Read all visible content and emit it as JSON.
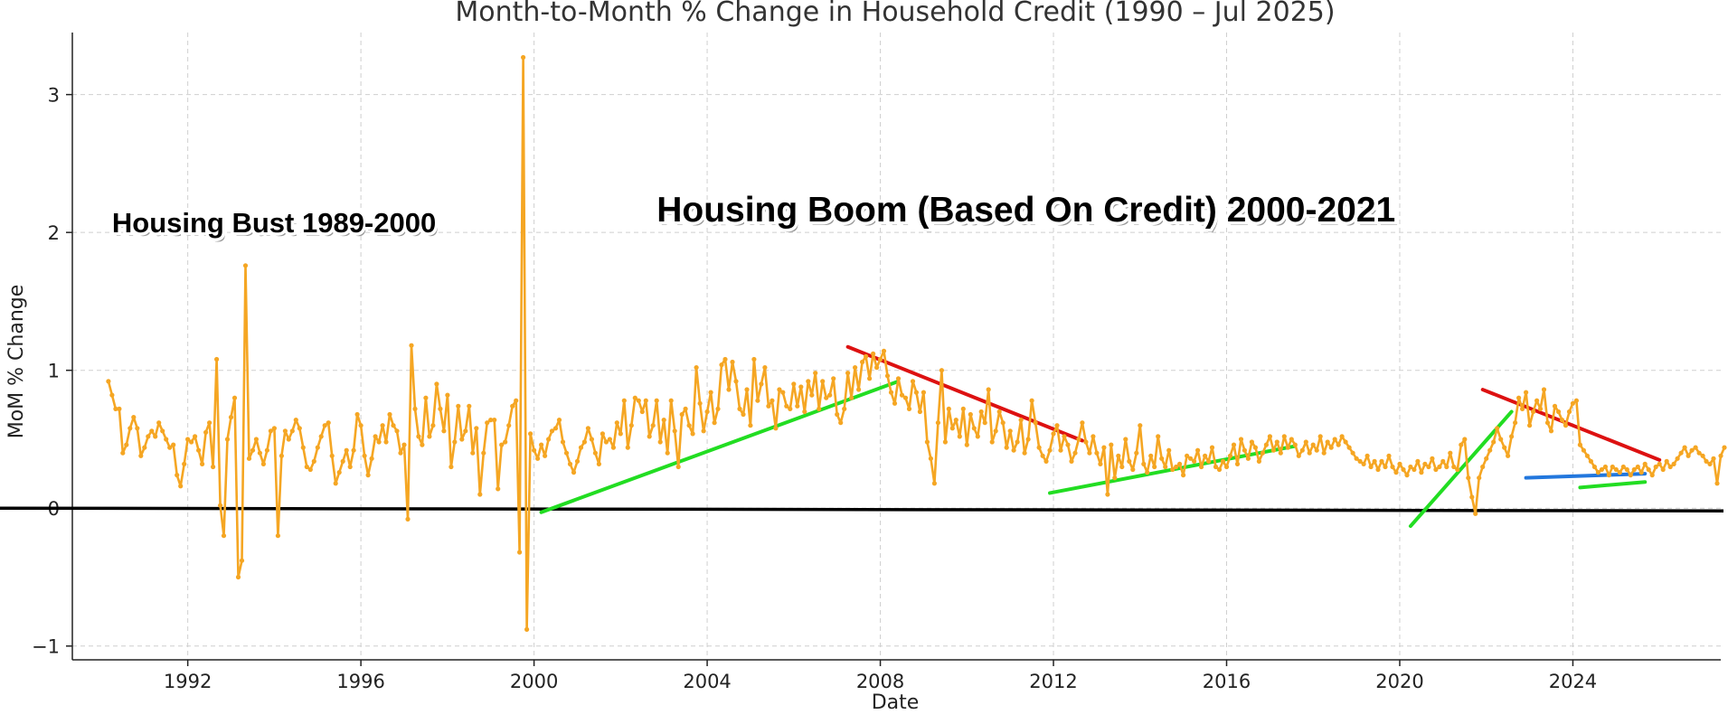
{
  "chart_data": {
    "type": "line",
    "title": "Month-to-Month % Change in Household Credit (1990 – Jul 2025)",
    "xlabel": "Date",
    "ylabel": "MoM % Change",
    "xlim": [
      "1989-05-01",
      "2027-06-01"
    ],
    "ylim": [
      -1.1,
      3.45
    ],
    "x_ticks": [
      "1992",
      "1996",
      "2000",
      "2004",
      "2008",
      "2012",
      "2016",
      "2020",
      "2024"
    ],
    "y_ticks": [
      -1,
      0,
      1,
      2,
      3
    ],
    "y_tick_labels": [
      "−1",
      "0",
      "1",
      "2",
      "3"
    ],
    "grid": true,
    "line_color": "#f5a623",
    "series": [
      {
        "values_monthly_from": "1990-03",
        "values": [
          0.92,
          0.82,
          0.72,
          0.72,
          0.4,
          0.46,
          0.58,
          0.66,
          0.58,
          0.38,
          0.44,
          0.52,
          0.56,
          0.52,
          0.62,
          0.56,
          0.5,
          0.44,
          0.46,
          0.24,
          0.16,
          0.32,
          0.5,
          0.48,
          0.52,
          0.42,
          0.32,
          0.55,
          0.62,
          0.3,
          1.08,
          0.02,
          -0.2,
          0.5,
          0.66,
          0.8,
          -0.5,
          -0.38,
          1.76,
          0.36,
          0.42,
          0.5,
          0.4,
          0.32,
          0.42,
          0.56,
          0.58,
          -0.2,
          0.38,
          0.56,
          0.5,
          0.56,
          0.64,
          0.58,
          0.44,
          0.3,
          0.28,
          0.34,
          0.44,
          0.52,
          0.6,
          0.62,
          0.38,
          0.18,
          0.26,
          0.34,
          0.42,
          0.3,
          0.42,
          0.68,
          0.6,
          0.38,
          0.24,
          0.36,
          0.52,
          0.48,
          0.6,
          0.48,
          0.68,
          0.6,
          0.56,
          0.4,
          0.46,
          -0.08,
          1.18,
          0.72,
          0.52,
          0.46,
          0.8,
          0.52,
          0.6,
          0.9,
          0.72,
          0.56,
          0.82,
          0.3,
          0.48,
          0.74,
          0.5,
          0.56,
          0.74,
          0.4,
          0.58,
          0.1,
          0.4,
          0.62,
          0.64,
          0.64,
          0.14,
          0.46,
          0.48,
          0.6,
          0.74,
          0.78,
          -0.32,
          3.27,
          -0.88,
          0.54,
          0.42,
          0.36,
          0.46,
          0.38,
          0.5,
          0.56,
          0.58,
          0.64,
          0.48,
          0.4,
          0.32,
          0.26,
          0.34,
          0.44,
          0.48,
          0.58,
          0.5,
          0.4,
          0.32,
          0.54,
          0.48,
          0.5,
          0.44,
          0.62,
          0.54,
          0.78,
          0.44,
          0.6,
          0.8,
          0.78,
          0.7,
          0.78,
          0.52,
          0.6,
          0.78,
          0.48,
          0.64,
          0.4,
          0.78,
          0.56,
          0.3,
          0.68,
          0.72,
          0.6,
          0.54,
          1.02,
          0.76,
          0.56,
          0.7,
          0.84,
          0.62,
          0.72,
          1.04,
          1.08,
          0.86,
          1.06,
          0.92,
          0.72,
          0.68,
          0.86,
          0.6,
          1.08,
          0.78,
          0.9,
          1.02,
          0.74,
          0.78,
          0.58,
          0.86,
          0.84,
          0.74,
          0.72,
          0.9,
          0.74,
          0.88,
          0.7,
          0.92,
          0.82,
          0.98,
          0.72,
          0.92,
          0.8,
          0.82,
          0.94,
          0.68,
          0.62,
          0.72,
          0.98,
          0.8,
          1.02,
          0.86,
          1.06,
          1.1,
          0.94,
          1.12,
          1.02,
          1.08,
          1.14,
          0.96,
          0.84,
          0.76,
          0.94,
          0.82,
          0.8,
          0.72,
          0.92,
          0.84,
          0.7,
          0.84,
          0.48,
          0.36,
          0.18,
          0.62,
          1.0,
          0.48,
          0.72,
          0.58,
          0.64,
          0.52,
          0.72,
          0.46,
          0.68,
          0.58,
          0.52,
          0.7,
          0.62,
          0.86,
          0.48,
          0.56,
          0.7,
          0.62,
          0.44,
          0.56,
          0.42,
          0.48,
          0.64,
          0.4,
          0.5,
          0.78,
          0.62,
          0.44,
          0.38,
          0.34,
          0.42,
          0.54,
          0.6,
          0.42,
          0.52,
          0.46,
          0.34,
          0.4,
          0.5,
          0.62,
          0.48,
          0.4,
          0.52,
          0.4,
          0.32,
          0.44,
          0.1,
          0.46,
          0.22,
          0.38,
          0.3,
          0.5,
          0.34,
          0.28,
          0.4,
          0.6,
          0.32,
          0.26,
          0.38,
          0.3,
          0.52,
          0.36,
          0.3,
          0.42,
          0.28,
          0.3,
          0.32,
          0.24,
          0.38,
          0.36,
          0.34,
          0.42,
          0.3,
          0.38,
          0.34,
          0.44,
          0.3,
          0.28,
          0.34,
          0.3,
          0.38,
          0.46,
          0.32,
          0.5,
          0.42,
          0.36,
          0.48,
          0.44,
          0.34,
          0.4,
          0.46,
          0.52,
          0.42,
          0.48,
          0.4,
          0.52,
          0.44,
          0.5,
          0.46,
          0.38,
          0.42,
          0.48,
          0.4,
          0.46,
          0.42,
          0.52,
          0.4,
          0.48,
          0.44,
          0.5,
          0.46,
          0.52,
          0.48,
          0.44,
          0.4,
          0.36,
          0.34,
          0.32,
          0.38,
          0.3,
          0.34,
          0.28,
          0.34,
          0.3,
          0.38,
          0.3,
          0.26,
          0.32,
          0.28,
          0.24,
          0.3,
          0.28,
          0.34,
          0.26,
          0.32,
          0.3,
          0.36,
          0.28,
          0.3,
          0.34,
          0.3,
          0.4,
          0.3,
          0.28,
          0.46,
          0.5,
          0.22,
          0.08,
          -0.04,
          0.22,
          0.3,
          0.36,
          0.42,
          0.48,
          0.58,
          0.5,
          0.44,
          0.38,
          0.52,
          0.62,
          0.8,
          0.72,
          0.84,
          0.6,
          0.7,
          0.78,
          0.72,
          0.86,
          0.62,
          0.56,
          0.74,
          0.7,
          0.64,
          0.6,
          0.7,
          0.76,
          0.78,
          0.46,
          0.42,
          0.38,
          0.34,
          0.3,
          0.26,
          0.28,
          0.3,
          0.24,
          0.3,
          0.28,
          0.26,
          0.3,
          0.28,
          0.24,
          0.28,
          0.3,
          0.26,
          0.32,
          0.28,
          0.24,
          0.3,
          0.32,
          0.28,
          0.34,
          0.3,
          0.32,
          0.36,
          0.4,
          0.44,
          0.38,
          0.42,
          0.44,
          0.4,
          0.38,
          0.34,
          0.32,
          0.36,
          0.18,
          0.38,
          0.44
        ]
      }
    ],
    "zero_line": {
      "y": 0,
      "color": "#000000"
    },
    "trend_lines": [
      {
        "color": "#22dd22",
        "from": [
          "2000-03",
          -0.03
        ],
        "to": [
          "2008-06",
          0.92
        ]
      },
      {
        "color": "#dd1111",
        "from": [
          "2007-04",
          1.17
        ],
        "to": [
          "2012-09",
          0.49
        ]
      },
      {
        "color": "#22dd22",
        "from": [
          "2011-12",
          0.11
        ],
        "to": [
          "2017-08",
          0.45
        ]
      },
      {
        "color": "#22dd22",
        "from": [
          "2020-04",
          -0.13
        ],
        "to": [
          "2022-08",
          0.7
        ]
      },
      {
        "color": "#dd1111",
        "from": [
          "2021-12",
          0.86
        ],
        "to": [
          "2026-01",
          0.35
        ]
      },
      {
        "color": "#2277dd",
        "from": [
          "2022-12",
          0.22
        ],
        "to": [
          "2025-09",
          0.25
        ]
      },
      {
        "color": "#22dd22",
        "from": [
          "2024-03",
          0.15
        ],
        "to": [
          "2025-09",
          0.19
        ]
      }
    ],
    "annotations": [
      {
        "text": "Housing Bust 1989-2000",
        "at": [
          "1990-04",
          2.0
        ],
        "size": "medium"
      },
      {
        "text": "Housing Boom (Based On Credit) 2000-2021",
        "at": [
          "2002-11",
          2.08
        ],
        "size": "large"
      }
    ]
  }
}
